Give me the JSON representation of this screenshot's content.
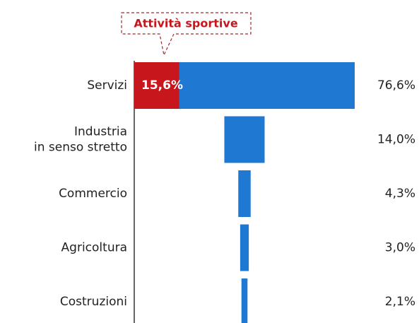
{
  "chart_data": {
    "type": "funnel",
    "categories": [
      "Servizi",
      "Industria\nin senso stretto",
      "Commercio",
      "Agricoltura",
      "Costruzioni"
    ],
    "values": [
      76.6,
      14.0,
      4.3,
      3.0,
      2.1
    ],
    "value_labels": [
      "76,6%",
      "14,0%",
      "4,3%",
      "3,0%",
      "2,1%"
    ],
    "color": "#1f78d1",
    "highlight": {
      "label": "Attività sportive",
      "category": 0,
      "value": 15.6,
      "value_label": "15,6%",
      "color": "#c8161d"
    }
  }
}
